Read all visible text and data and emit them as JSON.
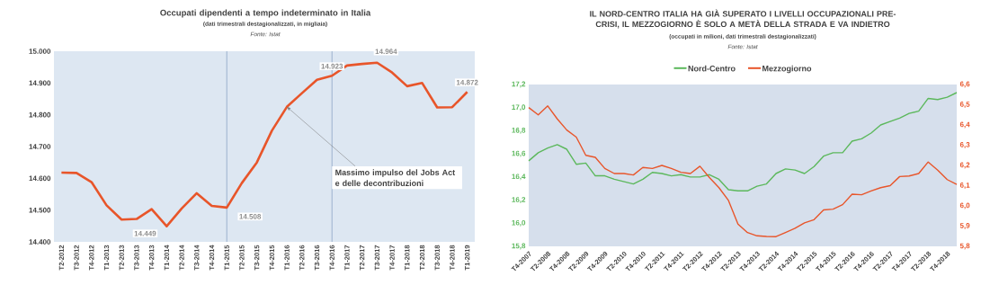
{
  "chart_data": [
    {
      "type": "line",
      "title": "Occupati dipendenti a tempo indeterminato in Italia",
      "subtitle": "(dati trimestrali destagionalizzati, in migliaia)",
      "categories": [
        "T2-2012",
        "T3-2012",
        "T4-2012",
        "T1-2013",
        "T2-2013",
        "T3-2013",
        "T4-2013",
        "T1-2014",
        "T2-2014",
        "T3-2014",
        "T4-2014",
        "T1-2015",
        "T2-2015",
        "T3-2015",
        "T4-2015",
        "T1-2016",
        "T2-2016",
        "T3-2016",
        "T4-2016",
        "T1-2017",
        "T2-2017",
        "T3-2017",
        "T4-2017",
        "T1-2018",
        "T2-2018",
        "T3-2018",
        "T4-2018",
        "T1-2019"
      ],
      "values": [
        14618,
        14617,
        14588,
        14515,
        14470,
        14472,
        14503,
        14449,
        14505,
        14553,
        14513,
        14508,
        14585,
        14650,
        14750,
        14825,
        14868,
        14910,
        14923,
        14955,
        14960,
        14964,
        14933,
        14890,
        14900,
        14823,
        14824,
        14872
      ],
      "value_labels": [
        null,
        null,
        null,
        null,
        null,
        null,
        null,
        "14.449",
        null,
        null,
        null,
        "14.508",
        null,
        null,
        null,
        null,
        null,
        null,
        "14.923",
        null,
        null,
        "14.964",
        null,
        null,
        null,
        null,
        null,
        "14.872"
      ],
      "color": "#e8552a",
      "ylim": [
        14400,
        15000
      ],
      "yticks": [
        {
          "value": 14400,
          "label": "14.400"
        },
        {
          "value": 14500,
          "label": "14.500"
        },
        {
          "value": 14600,
          "label": "14.600"
        },
        {
          "value": 14700,
          "label": "14.700"
        },
        {
          "value": 14800,
          "label": "14.800"
        },
        {
          "value": 14900,
          "label": "14.900"
        },
        {
          "value": 15000,
          "label": "15.000"
        }
      ],
      "ref_lines": [
        {
          "axis": "x",
          "value": "T1-2015",
          "color": "#7f9cc0"
        },
        {
          "axis": "x",
          "value": "T4-2016",
          "color": "#7f9cc0"
        }
      ],
      "annotations": [
        "Fonte: Istat",
        {
          "text": "Massimo impulso del Jobs Act e delle decontribuzioni",
          "x": "T1-2016",
          "y": 14825
        }
      ],
      "legend": false
    },
    {
      "type": "line",
      "title": "IL NORD-CENTRO ITALIA HA GIÀ SUPERATO I LIVELLI OCCUPAZIONALI PRE-CRISI, IL MEZZOGIORNO È SOLO A METÀ DELLA STRADA E VA INDIETRO",
      "subtitle": "(occupati in milioni, dati trimestrali destagionalizzati)",
      "categories": [
        "T4-2007",
        null,
        "T2-2008",
        null,
        "T4-2008",
        null,
        "T2-2009",
        null,
        "T4-2009",
        null,
        "T2-2010",
        null,
        "T4-2010",
        null,
        "T2-2011",
        null,
        "T4-2011",
        null,
        "T2-2012",
        null,
        "T4-2012",
        null,
        "T2-2013",
        null,
        "T4-2013",
        null,
        "T2-2014",
        null,
        "T4-2014",
        null,
        "T2-2015",
        null,
        "T4-2015",
        null,
        "T2-2016",
        null,
        "T4-2016",
        null,
        "T2-2017",
        null,
        "T4-2017",
        null,
        "T2-2018",
        null,
        "T4-2018",
        null
      ],
      "series": [
        {
          "name": "Nord-Centro",
          "color": "#5cb85c",
          "values": [
            16.54,
            16.61,
            16.65,
            16.68,
            16.64,
            16.51,
            16.52,
            16.41,
            16.41,
            16.38,
            16.36,
            16.34,
            16.38,
            16.44,
            16.43,
            16.41,
            16.42,
            16.4,
            16.4,
            16.42,
            16.38,
            16.29,
            16.28,
            16.28,
            16.32,
            16.34,
            16.43,
            16.47,
            16.46,
            16.43,
            16.49,
            16.58,
            16.61,
            16.61,
            16.71,
            16.73,
            16.78,
            16.85,
            16.88,
            16.91,
            16.95,
            16.97,
            17.08,
            17.07,
            17.09,
            17.13
          ]
        },
        {
          "name": "Mezzogiorno",
          "color": "#e8552a",
          "axis": "y2",
          "values": [
            6.486,
            6.45,
            6.494,
            6.43,
            6.375,
            6.34,
            6.25,
            6.24,
            6.185,
            6.16,
            6.16,
            6.153,
            6.19,
            6.185,
            6.2,
            6.185,
            6.166,
            6.16,
            6.196,
            6.14,
            6.09,
            6.027,
            5.91,
            5.868,
            5.852,
            5.849,
            5.848,
            5.868,
            5.889,
            5.916,
            5.932,
            5.98,
            5.984,
            6.006,
            6.058,
            6.055,
            6.074,
            6.09,
            6.1,
            6.145,
            6.148,
            6.16,
            6.217,
            6.177,
            6.13,
            6.106
          ]
        }
      ],
      "ylim": [
        15.8,
        17.2
      ],
      "yticks": [
        {
          "value": 15.8,
          "label": "15,8"
        },
        {
          "value": 16.0,
          "label": "16,0"
        },
        {
          "value": 16.2,
          "label": "16,2"
        },
        {
          "value": 16.4,
          "label": "16,4"
        },
        {
          "value": 16.6,
          "label": "16,6"
        },
        {
          "value": 16.8,
          "label": "16,8"
        },
        {
          "value": 17.0,
          "label": "17,0"
        },
        {
          "value": 17.2,
          "label": "17,2"
        }
      ],
      "y2lim": [
        5.8,
        6.6
      ],
      "y2ticks": [
        {
          "value": 5.8,
          "label": "5,8"
        },
        {
          "value": 5.9,
          "label": "5,9"
        },
        {
          "value": 6.0,
          "label": "6,0"
        },
        {
          "value": 6.1,
          "label": "6,1"
        },
        {
          "value": 6.2,
          "label": "6,2"
        },
        {
          "value": 6.3,
          "label": "6,3"
        },
        {
          "value": 6.4,
          "label": "6,4"
        },
        {
          "value": 6.5,
          "label": "6,5"
        },
        {
          "value": 6.6,
          "label": "6,6"
        }
      ],
      "annotations": [
        "Fonte: Istat"
      ],
      "legend": "top"
    }
  ]
}
